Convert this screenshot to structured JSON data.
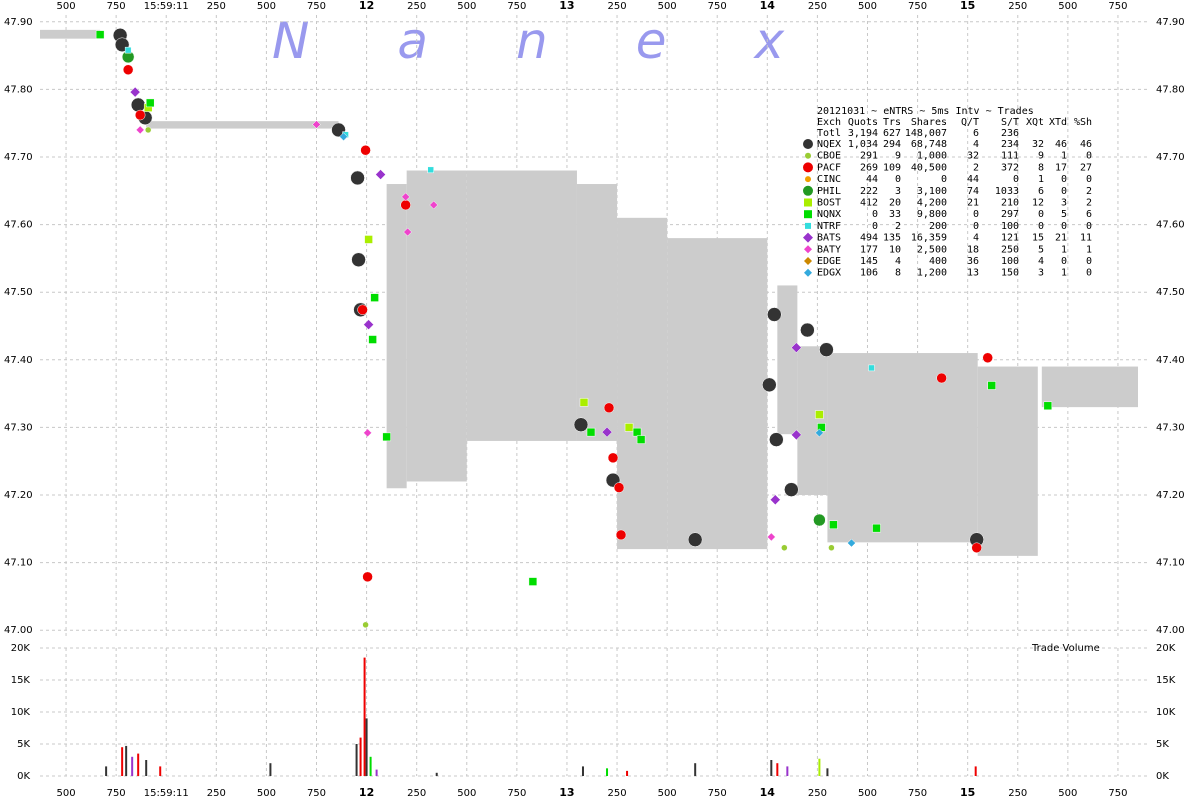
{
  "chart_data": [
    {
      "type": "scatter",
      "watermark": "Nanex",
      "xlim": [
        10.37,
        15.9
      ],
      "ylim": [
        46.99,
        47.91
      ],
      "xticks": [
        {
          "value": 10.5,
          "label": "500"
        },
        {
          "value": 10.75,
          "label": "750"
        },
        {
          "value": 11,
          "label": "15:59:11"
        },
        {
          "value": 11.25,
          "label": "250"
        },
        {
          "value": 11.5,
          "label": "500"
        },
        {
          "value": 11.75,
          "label": "750"
        },
        {
          "value": 12,
          "label": "12"
        },
        {
          "value": 12.25,
          "label": "250"
        },
        {
          "value": 12.5,
          "label": "500"
        },
        {
          "value": 12.75,
          "label": "750"
        },
        {
          "value": 13,
          "label": "13"
        },
        {
          "value": 13.25,
          "label": "250"
        },
        {
          "value": 13.5,
          "label": "500"
        },
        {
          "value": 13.75,
          "label": "750"
        },
        {
          "value": 14,
          "label": "14"
        },
        {
          "value": 14.25,
          "label": "250"
        },
        {
          "value": 14.5,
          "label": "500"
        },
        {
          "value": 14.75,
          "label": "750"
        },
        {
          "value": 15,
          "label": "15"
        },
        {
          "value": 15.25,
          "label": "250"
        },
        {
          "value": 15.5,
          "label": "500"
        },
        {
          "value": 15.75,
          "label": "750"
        }
      ],
      "yticks": [
        {
          "value": 47.0,
          "label": "47.00"
        },
        {
          "value": 47.1,
          "label": "47.10"
        },
        {
          "value": 47.2,
          "label": "47.20"
        },
        {
          "value": 47.3,
          "label": "47.30"
        },
        {
          "value": 47.4,
          "label": "47.40"
        },
        {
          "value": 47.5,
          "label": "47.50"
        },
        {
          "value": 47.6,
          "label": "47.60"
        },
        {
          "value": 47.7,
          "label": "47.70"
        },
        {
          "value": 47.8,
          "label": "47.80"
        },
        {
          "value": 47.9,
          "label": "47.90"
        }
      ],
      "grid": true,
      "range": {
        "color": "#cccccc",
        "x": [
          10.37,
          10.67,
          10.9,
          11.86,
          12.1,
          12.2,
          12.5,
          13.05,
          13.25,
          13.5,
          14.0,
          14.05,
          14.15,
          14.3,
          15.05,
          15.35,
          15.37,
          15.85
        ],
        "low": [
          47.875,
          null,
          47.742,
          null,
          47.21,
          47.22,
          47.28,
          47.28,
          47.12,
          47.12,
          null,
          47.29,
          47.2,
          47.13,
          47.11,
          null,
          47.33,
          null
        ],
        "high": [
          47.888,
          null,
          47.753,
          null,
          47.66,
          47.68,
          47.68,
          47.66,
          47.61,
          47.58,
          null,
          47.51,
          47.42,
          47.41,
          47.39,
          null,
          47.39,
          null
        ]
      },
      "legend_table": {
        "title": "20121031 ~ eNTRS ~ 5ms Intv ~ Trades",
        "header": [
          "Exch",
          "Quots",
          "Trs",
          "Shares",
          "Q/T",
          "S/T",
          "XQt",
          "XTd",
          "%Sh"
        ],
        "total": [
          "Totl",
          "3,194",
          "627",
          "148,007",
          "6",
          "236"
        ],
        "rows": [
          [
            "1,034",
            "294",
            "68,748",
            "4",
            "234",
            "32",
            "46",
            "46"
          ],
          [
            "291",
            "9",
            "1,000",
            "32",
            "111",
            "9",
            "1",
            "0"
          ],
          [
            "269",
            "109",
            "40,500",
            "2",
            "372",
            "8",
            "17",
            "27"
          ],
          [
            "44",
            "0",
            "0",
            "44",
            "0",
            "1",
            "0",
            "0"
          ],
          [
            "222",
            "3",
            "3,100",
            "74",
            "1033",
            "6",
            "0",
            "2"
          ],
          [
            "412",
            "20",
            "4,200",
            "21",
            "210",
            "12",
            "3",
            "2"
          ],
          [
            "0",
            "33",
            "9,800",
            "0",
            "297",
            "0",
            "5",
            "6"
          ],
          [
            "0",
            "2",
            "200",
            "0",
            "100",
            "0",
            "0",
            "0"
          ],
          [
            "494",
            "135",
            "16,359",
            "4",
            "121",
            "15",
            "21",
            "11"
          ],
          [
            "177",
            "10",
            "2,500",
            "18",
            "250",
            "5",
            "1",
            "1"
          ],
          [
            "145",
            "4",
            "400",
            "36",
            "100",
            "4",
            "0",
            "0"
          ],
          [
            "106",
            "8",
            "1,200",
            "13",
            "150",
            "3",
            "1",
            "0"
          ]
        ]
      },
      "series": [
        {
          "name": "NQEX",
          "color": "#333333",
          "marker": "circle",
          "size": 7,
          "x": [
            10.77,
            10.78,
            10.86,
            10.895,
            11.86,
            11.955,
            11.96,
            11.97,
            13.07,
            13.23,
            13.64,
            14.01,
            14.035,
            14.045,
            14.12,
            14.2,
            14.295,
            15.045
          ],
          "values": [
            47.88,
            47.866,
            47.777,
            47.758,
            47.74,
            47.669,
            47.548,
            47.474,
            47.304,
            47.222,
            47.134,
            47.363,
            47.467,
            47.282,
            47.208,
            47.444,
            47.415,
            47.134
          ]
        },
        {
          "name": "CBOE",
          "color": "#99cc33",
          "marker": "circle",
          "size": 3,
          "x": [
            10.91,
            11.995,
            14.32,
            14.085
          ],
          "values": [
            47.74,
            47.008,
            47.122,
            47.122
          ]
        },
        {
          "name": "PACF",
          "color": "#ee0000",
          "marker": "circle",
          "size": 5,
          "x": [
            10.81,
            10.87,
            11.995,
            11.98,
            12.005,
            12.195,
            13.21,
            13.23,
            13.26,
            13.27,
            14.87,
            15.1,
            15.045
          ],
          "values": [
            47.829,
            47.762,
            47.71,
            47.474,
            47.079,
            47.629,
            47.329,
            47.255,
            47.211,
            47.141,
            47.373,
            47.403,
            47.122
          ]
        },
        {
          "name": "CINC",
          "color": "#f0a000",
          "marker": "circle",
          "size": 3,
          "x": [],
          "values": []
        },
        {
          "name": "PHIL",
          "color": "#229922",
          "marker": "circle",
          "size": 6,
          "x": [
            14.26,
            10.81
          ],
          "values": [
            47.163,
            47.848
          ]
        },
        {
          "name": "BOST",
          "color": "#aaee00",
          "marker": "square",
          "size": 4,
          "x": [
            10.91,
            12.01,
            13.085,
            13.31,
            14.26
          ],
          "values": [
            47.773,
            47.578,
            47.337,
            47.3,
            47.319
          ]
        },
        {
          "name": "NQNX",
          "color": "#00dd00",
          "marker": "square",
          "size": 4,
          "x": [
            10.67,
            10.92,
            12.04,
            13.12,
            13.35,
            13.37,
            14.27,
            14.33,
            14.545,
            12.83,
            12.1,
            15.4,
            15.12,
            12.03
          ],
          "values": [
            47.881,
            47.78,
            47.492,
            47.293,
            47.293,
            47.282,
            47.3,
            47.156,
            47.151,
            47.072,
            47.286,
            47.332,
            47.362,
            47.43
          ]
        },
        {
          "name": "NTRF",
          "color": "#33dddd",
          "marker": "square",
          "size": 3,
          "x": [
            10.81,
            11.895,
            12.32,
            14.52
          ],
          "values": [
            47.858,
            47.733,
            47.681,
            47.388
          ]
        },
        {
          "name": "BATS",
          "color": "#9933cc",
          "marker": "diamond",
          "size": 5,
          "x": [
            10.845,
            12.01,
            12.07,
            13.2,
            14.04,
            14.145,
            14.145
          ],
          "values": [
            47.796,
            47.452,
            47.674,
            47.293,
            47.193,
            47.418,
            47.289
          ]
        },
        {
          "name": "BATY",
          "color": "#ee44cc",
          "marker": "diamond",
          "size": 4,
          "x": [
            10.87,
            11.75,
            12.005,
            12.195,
            12.205,
            12.335,
            14.02
          ],
          "values": [
            47.74,
            47.748,
            47.292,
            47.641,
            47.589,
            47.629,
            47.138
          ]
        },
        {
          "name": "EDGE",
          "color": "#cc8800",
          "marker": "diamond",
          "size": 4,
          "x": [],
          "values": []
        },
        {
          "name": "EDGX",
          "color": "#33aadd",
          "marker": "diamond",
          "size": 4,
          "x": [
            11.885,
            14.26,
            14.42
          ],
          "values": [
            47.73,
            47.292,
            47.129
          ]
        }
      ]
    },
    {
      "type": "bar",
      "title": "Trade Volume",
      "xlim": [
        10.37,
        15.9
      ],
      "ylim": [
        0,
        20000
      ],
      "yticks": [
        {
          "value": 0,
          "label": "0K"
        },
        {
          "value": 5000,
          "label": "5K"
        },
        {
          "value": 10000,
          "label": "10K"
        },
        {
          "value": 15000,
          "label": "15K"
        },
        {
          "value": 20000,
          "label": "20K"
        }
      ],
      "x": [
        10.7,
        10.78,
        10.8,
        10.83,
        10.86,
        10.9,
        10.97,
        11.52,
        11.95,
        11.97,
        11.99,
        12.0,
        12.02,
        12.05,
        12.35,
        13.08,
        13.2,
        13.3,
        13.64,
        14.02,
        14.05,
        14.1,
        14.26,
        14.3,
        15.04
      ],
      "values": [
        1500,
        4500,
        4700,
        3000,
        3500,
        2500,
        1500,
        2000,
        5000,
        6000,
        18500,
        9000,
        3000,
        1000,
        500,
        1500,
        1200,
        800,
        2000,
        2500,
        2000,
        1500,
        2700,
        1200,
        1500
      ],
      "colors": [
        "#333333",
        "#ee0000",
        "#333333",
        "#9933cc",
        "#ee0000",
        "#333333",
        "#ee0000",
        "#333333",
        "#333333",
        "#ee0000",
        "#ee0000",
        "#333333",
        "#00dd00",
        "#9933cc",
        "#333333",
        "#333333",
        "#00dd00",
        "#ee0000",
        "#333333",
        "#333333",
        "#ee0000",
        "#9933cc",
        "#aaee00",
        "#333333",
        "#ee0000"
      ]
    }
  ]
}
